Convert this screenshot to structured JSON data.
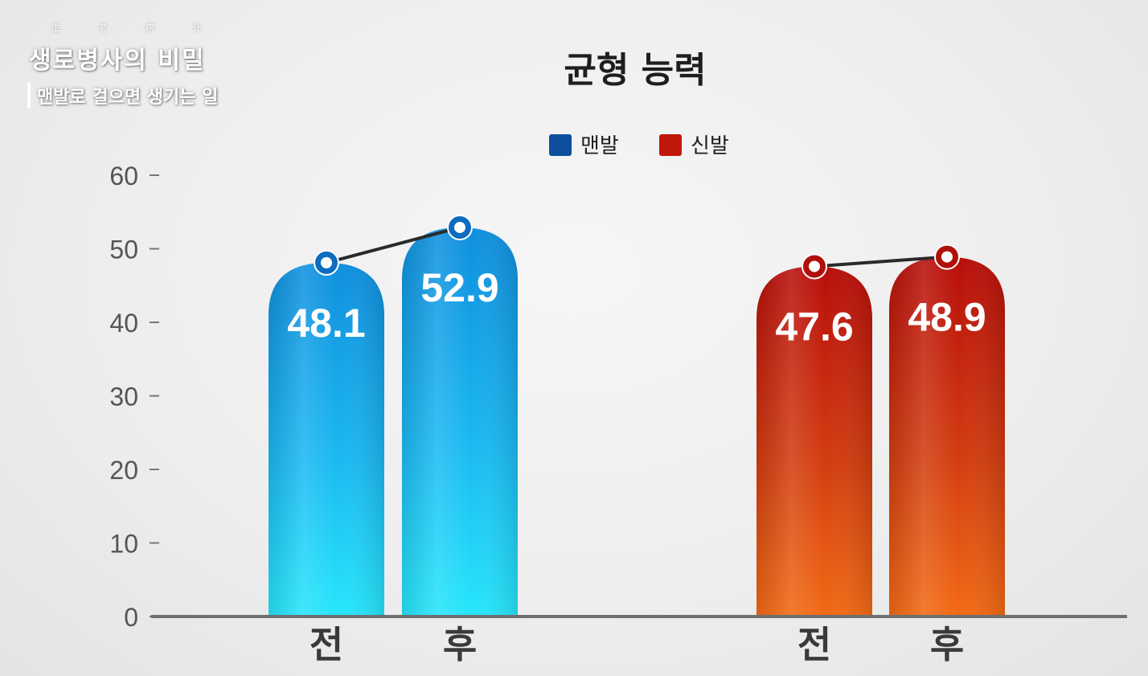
{
  "overlay": {
    "show_title": "생로병사의 비밀",
    "show_title_hanja": "生 老 病 死",
    "episode_subtitle": "맨발로 걸으면 생기는 일"
  },
  "colors": {
    "barefoot": "#1499e0",
    "shoes": "#c8200c",
    "axis": "#777777",
    "text": "#222222"
  },
  "chart_data": {
    "type": "bar",
    "title": "균형 능력",
    "xlabel": "",
    "ylabel": "",
    "ylim": [
      0,
      60
    ],
    "yticks": [
      0,
      10,
      20,
      30,
      40,
      50,
      60
    ],
    "grid": false,
    "legend_position": "top-center",
    "categories": [
      "전",
      "후"
    ],
    "series": [
      {
        "name": "맨발",
        "color": "#1499e0",
        "values": [
          48.1,
          52.9
        ],
        "labels": [
          "48.1",
          "52.9"
        ]
      },
      {
        "name": "신발",
        "color": "#c8200c",
        "values": [
          47.6,
          48.9
        ],
        "labels": [
          "47.6",
          "48.9"
        ]
      }
    ]
  }
}
